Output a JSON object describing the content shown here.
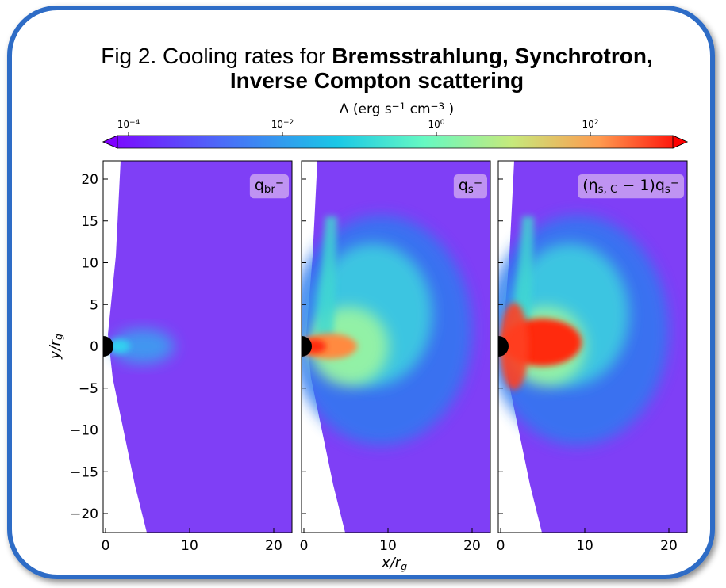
{
  "title": {
    "prefix": "Fig 2. Cooling rates for ",
    "bold_line1": "Bremsstrahlung, Synchrotron,",
    "bold_line2": "Inverse Compton scattering"
  },
  "colorbar": {
    "label": [
      {
        "text": "Λ (erg s"
      },
      {
        "sup": "−1"
      },
      {
        "text": " cm"
      },
      {
        "sup": "−3"
      },
      {
        "text": " )"
      }
    ],
    "ticks": [
      {
        "base": "10",
        "exp": "−4"
      },
      {
        "base": "10",
        "exp": "−2"
      },
      {
        "base": "10",
        "exp": "0"
      },
      {
        "base": "10",
        "exp": "2"
      }
    ]
  },
  "panels": [
    {
      "label": [
        {
          "text": "q"
        },
        {
          "sub": "br"
        },
        {
          "sup": "−"
        }
      ]
    },
    {
      "label": [
        {
          "text": "q"
        },
        {
          "sub": "s"
        },
        {
          "sup": "−"
        }
      ]
    },
    {
      "label": [
        {
          "text": "(η"
        },
        {
          "sub": "s, C"
        },
        {
          "text": " − 1)q"
        },
        {
          "sub": "s"
        },
        {
          "sup": "−"
        }
      ]
    }
  ],
  "x_axis": {
    "label": [
      {
        "text": "x/r"
      },
      {
        "sub": "g"
      }
    ],
    "ticks": [
      0,
      10,
      20
    ]
  },
  "y_axis": {
    "label": [
      {
        "text": "y/r"
      },
      {
        "sub": "g"
      }
    ],
    "ticks": [
      20,
      15,
      10,
      5,
      0,
      {
        "value": -5,
        "label": "−5"
      },
      {
        "value": -10,
        "label": "−10"
      },
      {
        "value": -15,
        "label": "−15"
      },
      {
        "value": -20,
        "label": "−20"
      }
    ]
  }
}
